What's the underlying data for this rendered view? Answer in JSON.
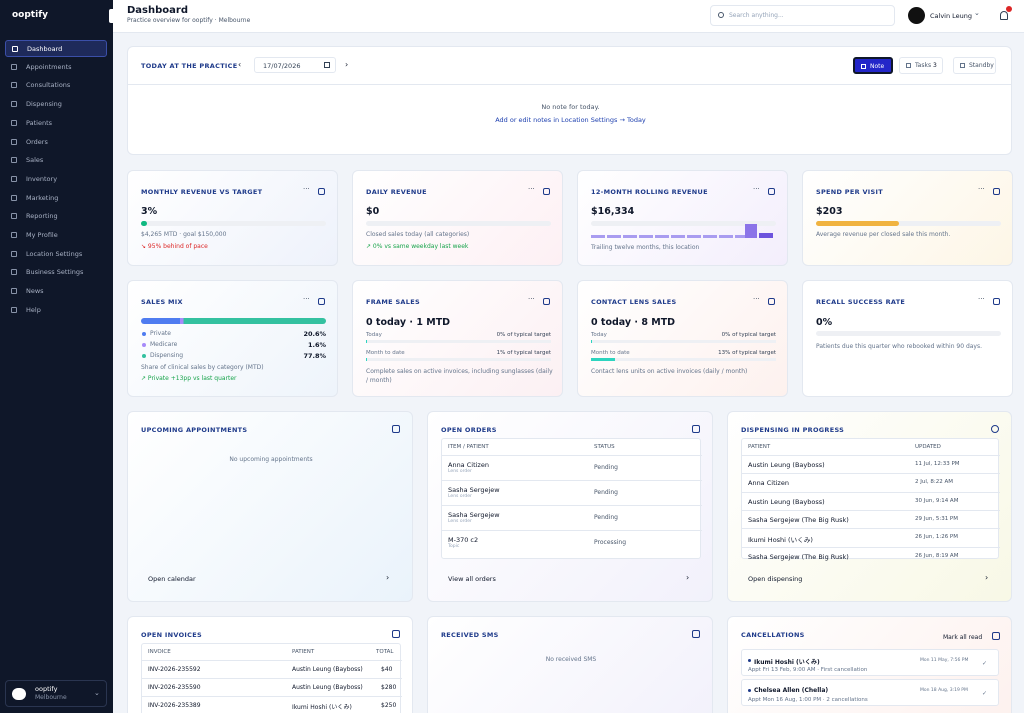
{
  "sidebar": {
    "brand": "ooptify",
    "nav": [
      "Dashboard",
      "Appointments",
      "Consultations",
      "Dispensing",
      "Patients",
      "Orders",
      "Sales",
      "Inventory",
      "Marketing",
      "Reporting",
      "My Profile",
      "Location Settings",
      "Business Settings",
      "News",
      "Help"
    ],
    "account": {
      "name": "ooptify",
      "location": "Melbourne"
    }
  },
  "header": {
    "title": "Dashboard",
    "subtitle": "Practice overview for ooptify · Melbourne",
    "search_placeholder": "Search anything...",
    "user": "Calvin Leung"
  },
  "today": {
    "title": "TODAY AT THE PRACTICE",
    "date": "17/07/2026",
    "buttons": [
      "Note",
      "Tasks",
      "Standby"
    ],
    "tasks_count": 3,
    "empty": "No note for today.",
    "link": "Add or edit notes in Location Settings → Today"
  },
  "kpis": [
    {
      "title": "MONTHLY REVENUE VS TARGET",
      "value": "3%",
      "detail": "$4,265 MTD · goal $150,000",
      "trend": "↘ 95% behind of pace"
    },
    {
      "title": "DAILY REVENUE",
      "value": "$0",
      "detail": "Closed sales today (all categories)",
      "trend": "↗ 0% vs same weekday last week"
    },
    {
      "title": "12-MONTH ROLLING REVENUE",
      "value": "$16,334",
      "detail": "Trailing twelve months, this location"
    },
    {
      "title": "SPEND PER VISIT",
      "value": "$203",
      "detail": "Average revenue per closed sale this month."
    },
    {
      "title": "SALES MIX",
      "rows": [
        [
          "Private",
          "20.6%"
        ],
        [
          "Medicare",
          "1.6%"
        ],
        [
          "Dispensing",
          "77.8%"
        ]
      ],
      "detail": "Share of clinical sales by category (MTD)",
      "trend": "↗ Private +13pp vs last quarter"
    },
    {
      "title": "FRAME SALES",
      "value": "0 today · 1 MTD",
      "rows": [
        [
          "Today",
          "0% of typical target"
        ],
        [
          "Month to date",
          "1% of typical target"
        ]
      ],
      "detail": "Complete sales on active invoices, including sunglasses (daily / month)"
    },
    {
      "title": "CONTACT LENS SALES",
      "value": "0 today · 8 MTD",
      "rows": [
        [
          "Today",
          "0% of typical target"
        ],
        [
          "Month to date",
          "13% of typical target"
        ]
      ],
      "detail": "Contact lens units on active invoices (daily / month)"
    },
    {
      "title": "RECALL SUCCESS RATE",
      "value": "0%",
      "detail": "Patients due this quarter who rebooked within 90 days."
    }
  ],
  "appointments": {
    "title": "UPCOMING APPOINTMENTS",
    "empty": "No upcoming appointments",
    "footer": "Open calendar"
  },
  "orders": {
    "title": "OPEN ORDERS",
    "columns": [
      "ITEM / PATIENT",
      "STATUS"
    ],
    "rows": [
      [
        "Anna Citizen",
        "Lens order",
        "Pending"
      ],
      [
        "Sasha Sergejew",
        "Lens order",
        "Pending"
      ],
      [
        "Sasha Sergejew",
        "Lens order",
        "Pending"
      ],
      [
        "M-370 c2",
        "Topic",
        "Processing"
      ]
    ],
    "footer": "View all orders"
  },
  "dispensing": {
    "title": "DISPENSING IN PROGRESS",
    "columns": [
      "PATIENT",
      "UPDATED"
    ],
    "rows": [
      [
        "Austin Leung (Bayboss)",
        "11 Jul, 12:33 PM"
      ],
      [
        "Anna Citizen",
        "2 Jul, 8:22 AM"
      ],
      [
        "Austin Leung (Bayboss)",
        "30 Jun, 9:14 AM"
      ],
      [
        "Sasha Sergejew (The Big Rusk)",
        "29 Jun, 5:31 PM"
      ],
      [
        "Ikumi Hoshi (いくみ)",
        "26 Jun, 1:26 PM"
      ],
      [
        "Sasha Sergejew (The Big Rusk)",
        "26 Jun, 8:19 AM"
      ]
    ],
    "footer": "Open dispensing"
  },
  "invoices": {
    "title": "OPEN INVOICES",
    "columns": [
      "INVOICE",
      "PATIENT",
      "TOTAL"
    ],
    "rows": [
      [
        "INV-2026-235592",
        "Austin Leung (Bayboss)",
        "$40"
      ],
      [
        "INV-2026-235590",
        "Austin Leung (Bayboss)",
        "$280"
      ],
      [
        "INV-2026-235389",
        "Ikumi Hoshi (いくみ)",
        "$250"
      ]
    ]
  },
  "sms": {
    "title": "RECEIVED SMS",
    "empty": "No received SMS"
  },
  "cancellations": {
    "title": "CANCELLATIONS",
    "action": "Mark all read",
    "items": [
      {
        "name": "Ikumi Hoshi (いくみ)",
        "time": "Mon 11 May, 7:56 PM",
        "detail": "Appt Fri 13 Feb, 9:00 AM · First cancellation"
      },
      {
        "name": "Chelsea Allen (Chella)",
        "time": "Mon 18 Aug, 3:19 PM",
        "detail": "Appt Mon 16 Aug, 1:00 PM · 2 cancellations"
      }
    ]
  }
}
